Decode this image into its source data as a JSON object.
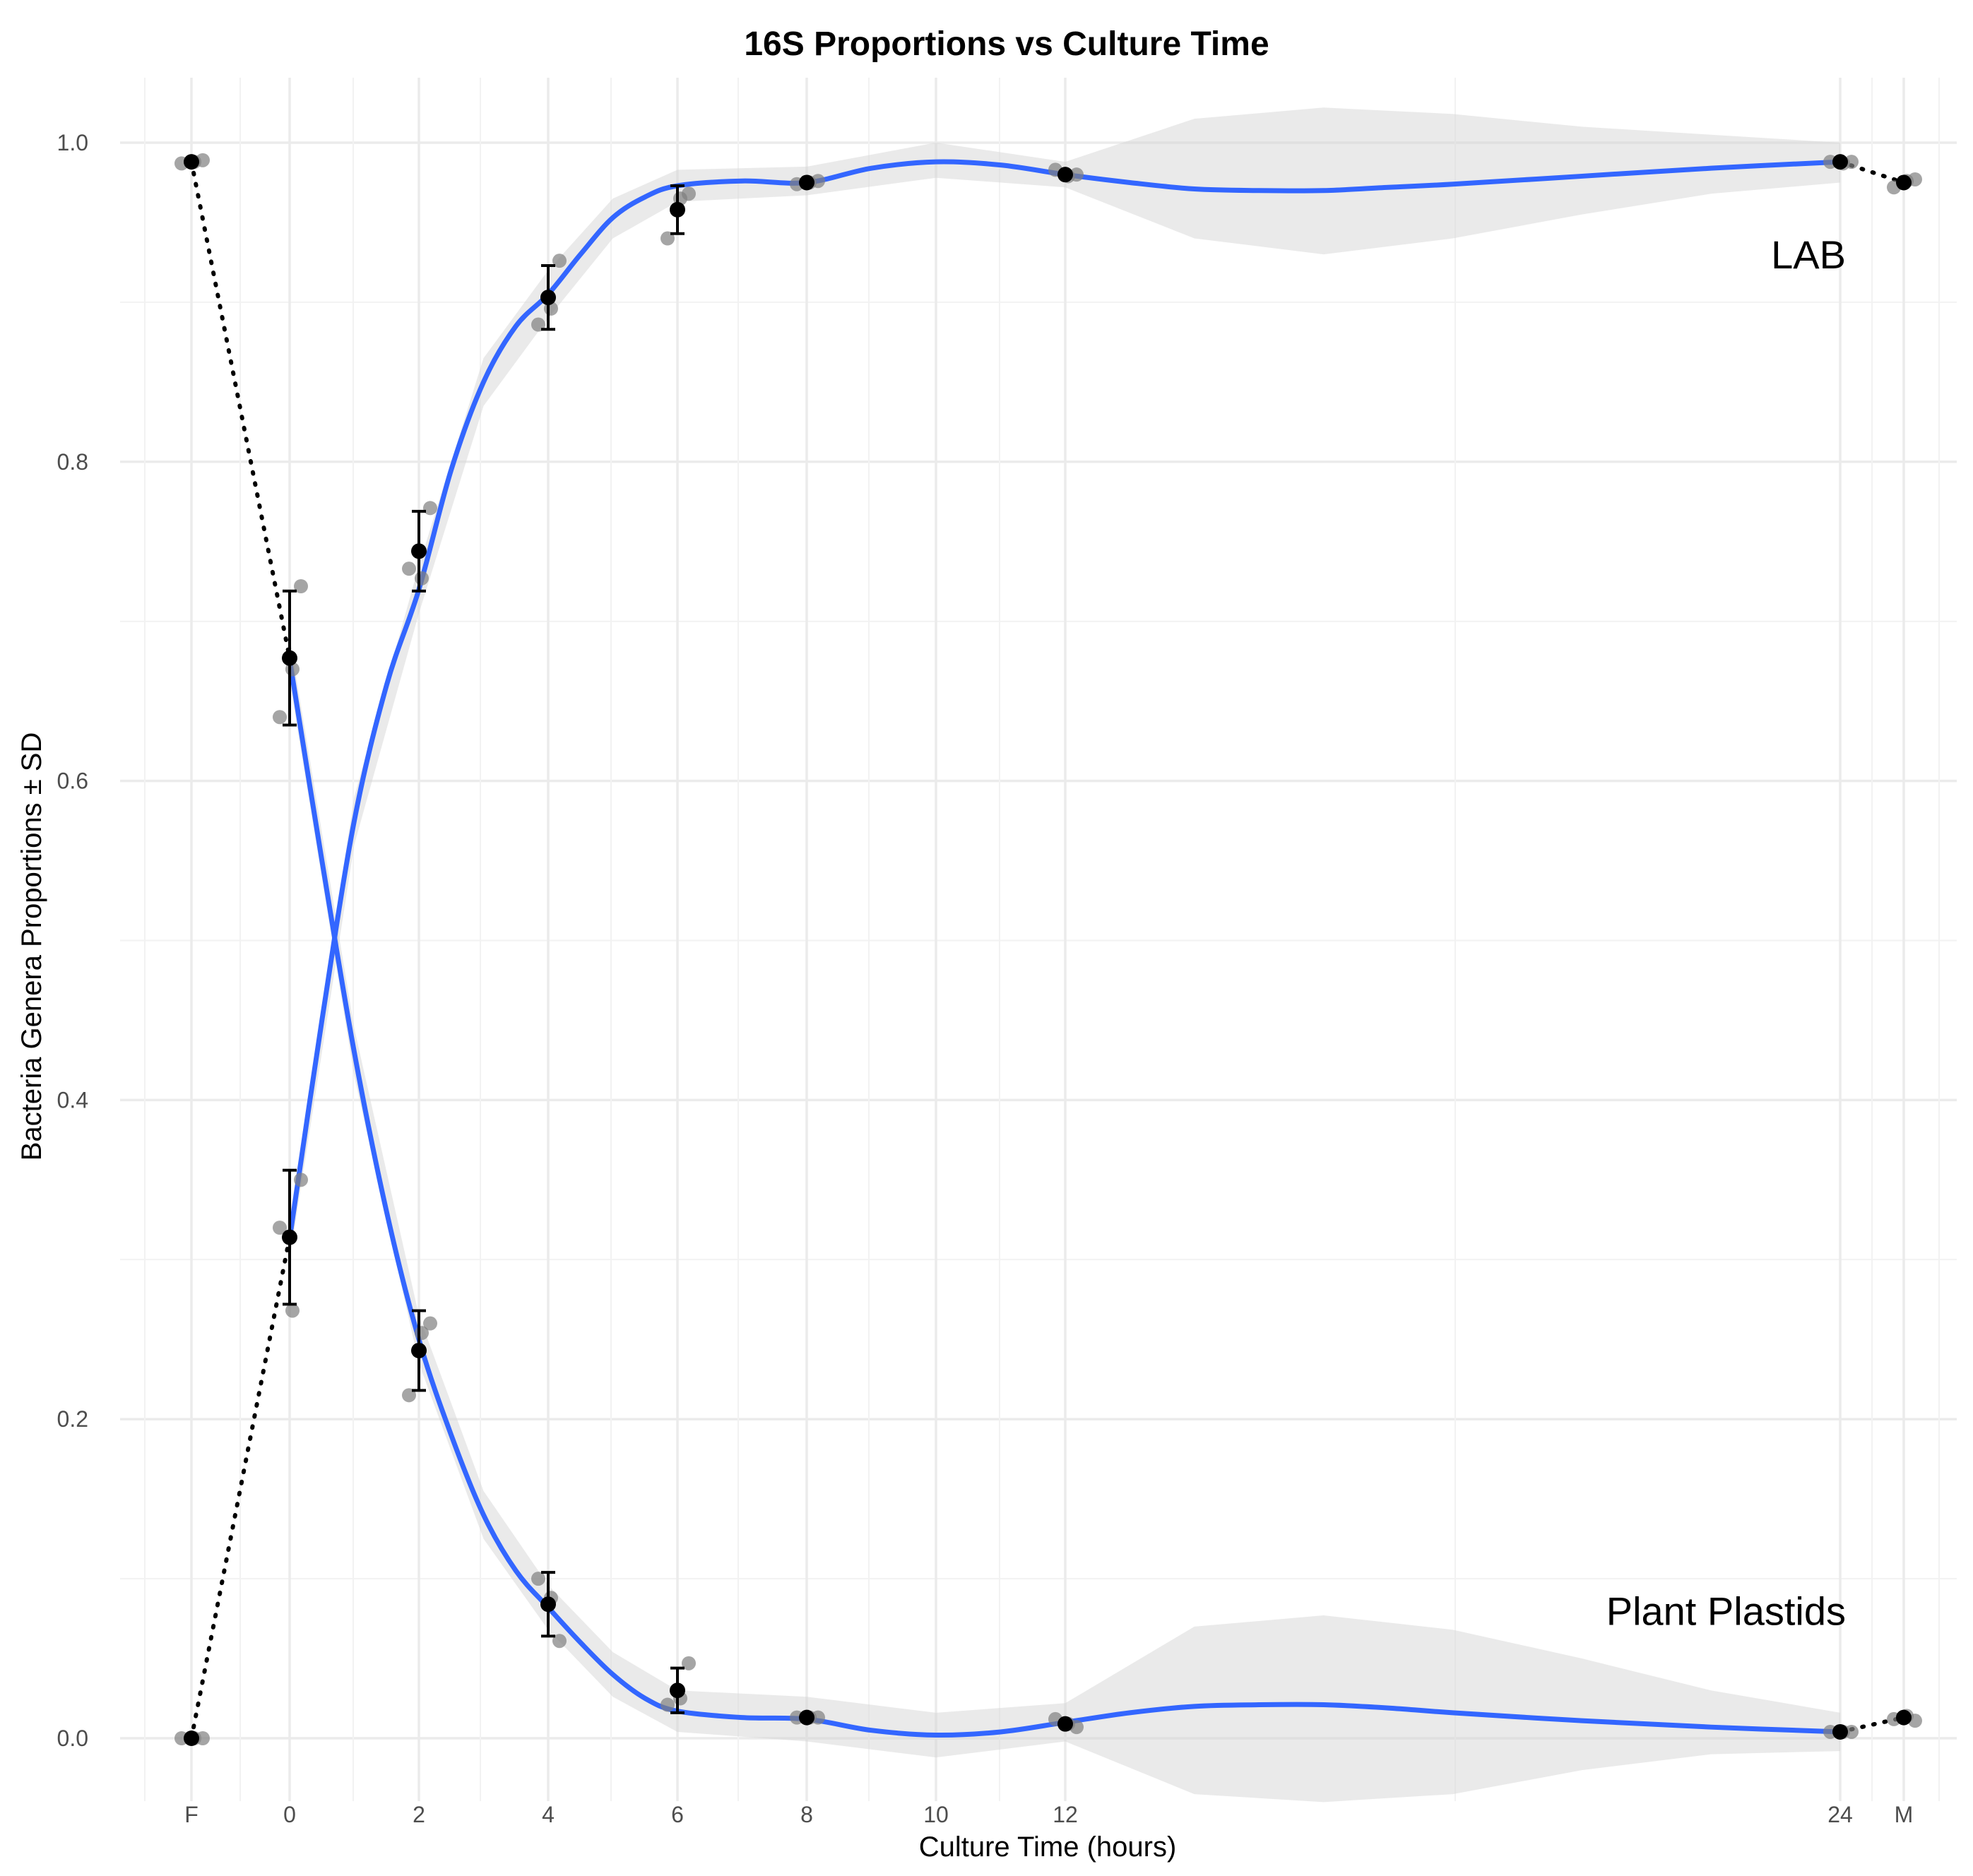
{
  "chart_data": {
    "type": "line",
    "title": "16S Proportions vs Culture Time",
    "xlabel": "Culture Time (hours)",
    "ylabel": "Bacteria Genera Proportions ± SD",
    "x_scale": "discontinuous (F, 0–12, 24, M)",
    "x_tick_labels": [
      "F",
      "0",
      "2",
      "4",
      "6",
      "8",
      "10",
      "12",
      "24",
      "M"
    ],
    "y_ticks": [
      "0.0",
      "0.2",
      "0.4",
      "0.6",
      "0.8",
      "1.0"
    ],
    "ylim": [
      -0.05,
      1.05
    ],
    "grid": true,
    "series": [
      {
        "name": "LAB",
        "line_color": "#3366ff",
        "means": [
          {
            "x": "F",
            "y": 0.988
          },
          {
            "x": "0",
            "y": 0.677,
            "sd": 0.042
          },
          {
            "x": "2",
            "y": 0.744,
            "sd": 0.025
          },
          {
            "x": "4",
            "y": 0.903,
            "sd": 0.02
          },
          {
            "x": "6",
            "y": 0.958,
            "sd": 0.015
          },
          {
            "x": "8",
            "y": 0.975
          },
          {
            "x": "12",
            "y": 0.98
          },
          {
            "x": "24",
            "y": 0.988
          },
          {
            "x": "M",
            "y": 0.975
          }
        ],
        "observations": [
          {
            "x": "F",
            "y": [
              0.987,
              0.988,
              0.989
            ]
          },
          {
            "x": "0",
            "y": [
              0.64,
              0.67,
              0.722
            ]
          },
          {
            "x": "2",
            "y": [
              0.733,
              0.727,
              0.771
            ]
          },
          {
            "x": "4",
            "y": [
              0.886,
              0.896,
              0.926
            ]
          },
          {
            "x": "6",
            "y": [
              0.94,
              0.965,
              0.968
            ]
          },
          {
            "x": "8",
            "y": [
              0.974,
              0.975,
              0.976
            ]
          },
          {
            "x": "12",
            "y": [
              0.983,
              0.979,
              0.98
            ]
          },
          {
            "x": "24",
            "y": [
              0.988,
              0.987,
              0.988
            ]
          },
          {
            "x": "M",
            "y": [
              0.972,
              0.976,
              0.977
            ]
          }
        ]
      },
      {
        "name": "Plant Plastids",
        "line_color": "#3366ff",
        "means": [
          {
            "x": "F",
            "y": 0.0
          },
          {
            "x": "0",
            "y": 0.314,
            "sd": 0.042
          },
          {
            "x": "2",
            "y": 0.243,
            "sd": 0.025
          },
          {
            "x": "4",
            "y": 0.084,
            "sd": 0.02
          },
          {
            "x": "6",
            "y": 0.03,
            "sd": 0.014
          },
          {
            "x": "8",
            "y": 0.013
          },
          {
            "x": "12",
            "y": 0.009
          },
          {
            "x": "24",
            "y": 0.004
          },
          {
            "x": "M",
            "y": 0.013
          }
        ],
        "observations": [
          {
            "x": "F",
            "y": [
              0.0,
              0.0,
              0.0
            ]
          },
          {
            "x": "0",
            "y": [
              0.32,
              0.268,
              0.35
            ]
          },
          {
            "x": "2",
            "y": [
              0.215,
              0.254,
              0.26
            ]
          },
          {
            "x": "4",
            "y": [
              0.1,
              0.088,
              0.061
            ]
          },
          {
            "x": "6",
            "y": [
              0.021,
              0.025,
              0.047
            ]
          },
          {
            "x": "8",
            "y": [
              0.013,
              0.013,
              0.013
            ]
          },
          {
            "x": "12",
            "y": [
              0.012,
              0.009,
              0.007
            ]
          },
          {
            "x": "24",
            "y": [
              0.004,
              0.004,
              0.004
            ]
          },
          {
            "x": "M",
            "y": [
              0.012,
              0.014,
              0.011
            ]
          }
        ]
      }
    ],
    "smooth_lab": [
      [
        0.0,
        0.313
      ],
      [
        0.5,
        0.45
      ],
      [
        1.0,
        0.575
      ],
      [
        1.5,
        0.66
      ],
      [
        2.0,
        0.72
      ],
      [
        2.5,
        0.795
      ],
      [
        3.0,
        0.85
      ],
      [
        3.5,
        0.885
      ],
      [
        4.0,
        0.905
      ],
      [
        4.5,
        0.93
      ],
      [
        5.0,
        0.953
      ],
      [
        5.5,
        0.966
      ],
      [
        6.0,
        0.973
      ],
      [
        7.0,
        0.976
      ],
      [
        8.0,
        0.975
      ],
      [
        9.0,
        0.984
      ],
      [
        10.0,
        0.988
      ],
      [
        11.0,
        0.986
      ],
      [
        12.0,
        0.98
      ],
      [
        13.0,
        0.975
      ],
      [
        14.0,
        0.971
      ],
      [
        15.0,
        0.97
      ],
      [
        16.0,
        0.97
      ],
      [
        17.0,
        0.972
      ],
      [
        18.0,
        0.974
      ],
      [
        20.0,
        0.979
      ],
      [
        22.0,
        0.984
      ],
      [
        24.0,
        0.988
      ]
    ],
    "smooth_lab_band": [
      [
        0.0,
        0.3,
        0.326
      ],
      [
        1.0,
        0.56,
        0.59
      ],
      [
        2.0,
        0.705,
        0.735
      ],
      [
        3.0,
        0.835,
        0.865
      ],
      [
        4.0,
        0.89,
        0.92
      ],
      [
        5.0,
        0.94,
        0.965
      ],
      [
        6.0,
        0.963,
        0.983
      ],
      [
        8.0,
        0.967,
        0.985
      ],
      [
        10.0,
        0.978,
        1.0
      ],
      [
        12.0,
        0.972,
        0.988
      ],
      [
        14.0,
        0.94,
        1.015
      ],
      [
        16.0,
        0.93,
        1.022
      ],
      [
        18.0,
        0.94,
        1.018
      ],
      [
        20.0,
        0.955,
        1.01
      ],
      [
        22.0,
        0.968,
        1.005
      ],
      [
        24.0,
        0.975,
        1.0
      ]
    ],
    "smooth_plastid": [
      [
        0.0,
        0.676
      ],
      [
        0.5,
        0.55
      ],
      [
        1.0,
        0.43
      ],
      [
        1.5,
        0.33
      ],
      [
        2.0,
        0.25
      ],
      [
        2.5,
        0.19
      ],
      [
        3.0,
        0.14
      ],
      [
        3.5,
        0.105
      ],
      [
        4.0,
        0.082
      ],
      [
        4.5,
        0.06
      ],
      [
        5.0,
        0.04
      ],
      [
        5.5,
        0.025
      ],
      [
        6.0,
        0.017
      ],
      [
        7.0,
        0.013
      ],
      [
        8.0,
        0.012
      ],
      [
        9.0,
        0.005
      ],
      [
        10.0,
        0.002
      ],
      [
        11.0,
        0.004
      ],
      [
        12.0,
        0.01
      ],
      [
        13.0,
        0.016
      ],
      [
        14.0,
        0.02
      ],
      [
        15.0,
        0.021
      ],
      [
        16.0,
        0.021
      ],
      [
        17.0,
        0.019
      ],
      [
        18.0,
        0.016
      ],
      [
        20.0,
        0.011
      ],
      [
        22.0,
        0.007
      ],
      [
        24.0,
        0.004
      ]
    ],
    "smooth_plastid_band": [
      [
        0.0,
        0.663,
        0.69
      ],
      [
        1.0,
        0.415,
        0.445
      ],
      [
        2.0,
        0.235,
        0.265
      ],
      [
        3.0,
        0.125,
        0.155
      ],
      [
        4.0,
        0.068,
        0.096
      ],
      [
        5.0,
        0.026,
        0.054
      ],
      [
        6.0,
        0.004,
        0.03
      ],
      [
        8.0,
        -0.002,
        0.026
      ],
      [
        10.0,
        -0.012,
        0.016
      ],
      [
        12.0,
        -0.002,
        0.022
      ],
      [
        14.0,
        -0.035,
        0.07
      ],
      [
        16.0,
        -0.04,
        0.077
      ],
      [
        18.0,
        -0.035,
        0.068
      ],
      [
        20.0,
        -0.02,
        0.05
      ],
      [
        22.0,
        -0.01,
        0.03
      ],
      [
        24.0,
        -0.008,
        0.016
      ]
    ],
    "dotted_connectors": [
      {
        "from": [
          "F",
          0.988
        ],
        "to": [
          "0",
          0.677
        ]
      },
      {
        "from": [
          "F",
          0.0
        ],
        "to": [
          "0",
          0.314
        ]
      },
      {
        "from": [
          "24",
          0.988
        ],
        "to": [
          "M",
          0.975
        ]
      },
      {
        "from": [
          "24",
          0.004
        ],
        "to": [
          "M",
          0.013
        ]
      }
    ],
    "annotations": [
      {
        "text": "LAB",
        "x": "24",
        "y": 0.93
      },
      {
        "text": "Plant Plastids",
        "x": "24",
        "y": 0.08
      }
    ]
  }
}
